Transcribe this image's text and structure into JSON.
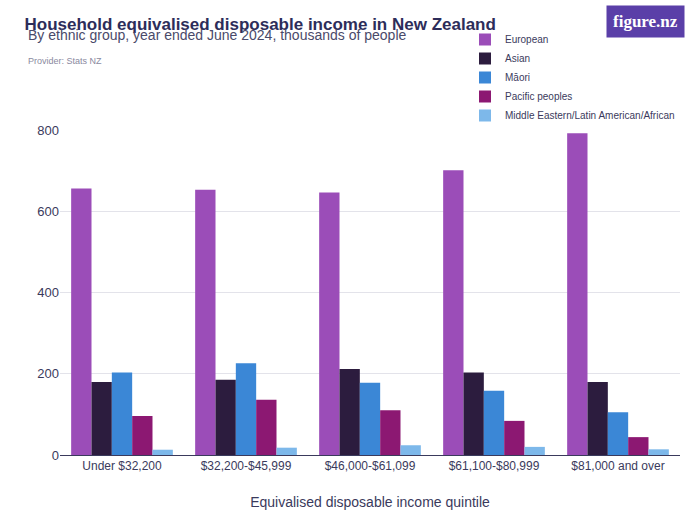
{
  "chart_data": {
    "type": "bar",
    "title": "Household equivalised disposable income in New Zealand",
    "subtitle": "By ethnic group, year ended June 2024, thousands of people",
    "source": "Provider: Stats NZ",
    "logo": "figure.nz",
    "x_label": "Equivalised disposable income quintile",
    "categories": [
      "Under $32,200",
      "$32,200-$45,999",
      "$46,000-$61,099",
      "$61,100-$80,999",
      "$81,000 and over"
    ],
    "series": [
      {
        "name": "European",
        "color": "#9b4db8",
        "values": [
          656,
          653,
          646,
          701,
          792
        ]
      },
      {
        "name": "Asian",
        "color": "#2c1c3e",
        "values": [
          180,
          185,
          212,
          203,
          180
        ]
      },
      {
        "name": "Māori",
        "color": "#3b87d6",
        "values": [
          203,
          226,
          178,
          158,
          105
        ]
      },
      {
        "name": "Pacific peoples",
        "color": "#8c1872",
        "values": [
          96,
          136,
          110,
          84,
          44
        ]
      },
      {
        "name": "Middle Eastern/Latin American/African",
        "color": "#7db8ea",
        "values": [
          13,
          18,
          24,
          20,
          14
        ]
      }
    ],
    "ylim": [
      0,
      800
    ],
    "yticks": [
      0,
      200,
      400,
      600,
      800
    ],
    "grid": true,
    "legend": "top right"
  }
}
